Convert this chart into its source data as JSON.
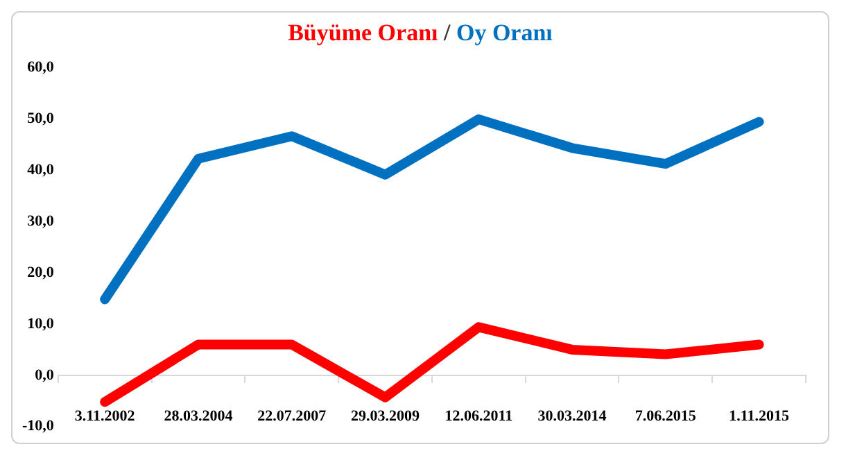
{
  "chart_data": {
    "type": "line",
    "categories": [
      "3.11.2002",
      "28.03.2004",
      "22.07.2007",
      "29.03.2009",
      "12.06.2011",
      "30.03.2014",
      "7.06.2015",
      "1.11.2015"
    ],
    "series": [
      {
        "name": "Büyüme Oranı",
        "color": "#ff0000",
        "values": [
          -5.2,
          6.0,
          6.0,
          -4.3,
          9.4,
          5.0,
          4.1,
          6.0
        ]
      },
      {
        "name": "Oy Oranı",
        "color": "#0070c0",
        "values": [
          14.8,
          42.2,
          46.6,
          39.1,
          49.9,
          44.3,
          41.2,
          49.4
        ]
      }
    ],
    "ylim": [
      -10,
      60
    ],
    "yticks": [
      {
        "value": -10,
        "label": "-10,0"
      },
      {
        "value": 0,
        "label": "0,0"
      },
      {
        "value": 10,
        "label": "10,0"
      },
      {
        "value": 20,
        "label": "20,0"
      },
      {
        "value": 30,
        "label": "30,0"
      },
      {
        "value": 40,
        "label": "40,0"
      },
      {
        "value": 50,
        "label": "50,0"
      },
      {
        "value": 60,
        "label": "60,0"
      }
    ],
    "annotations": [
      "/"
    ],
    "legend": "top",
    "marker": "none",
    "line_style": "solid"
  }
}
